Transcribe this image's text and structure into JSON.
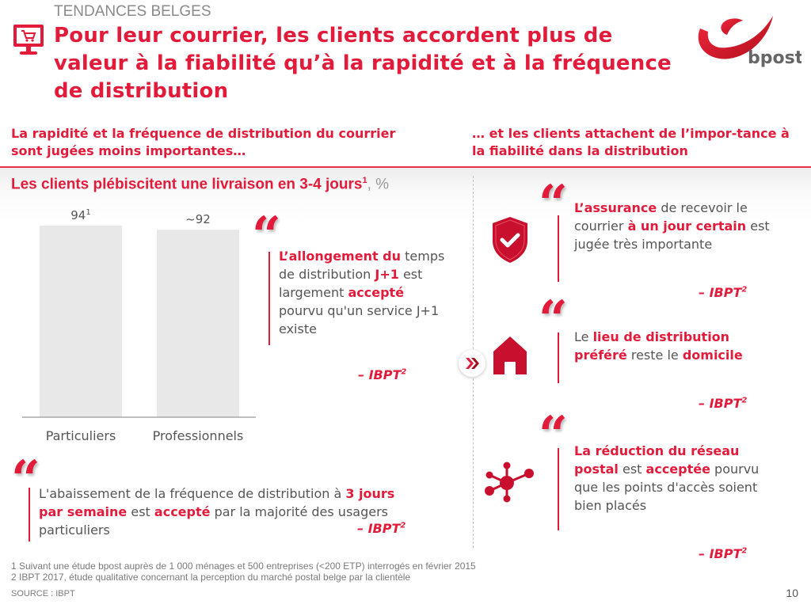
{
  "header": {
    "kicker": "TENDANCES BELGES",
    "title": "Pour leur courrier, les clients accordent plus de valeur à la fiabilité qu’à la rapidité et à la fréquence de distribution",
    "icon": "monitor-cart-icon",
    "logo_text": "bpost"
  },
  "colors": {
    "accent": "#e31b3b",
    "bar": "#e8e8e8",
    "text": "#555555"
  },
  "left": {
    "subtitle": "La rapidité et la fréquence de distribution du courrier sont jugées moins importantes…",
    "quote1": {
      "p1": "L’allongement du",
      "p2": " temps de distribution ",
      "p3": "J+1",
      "p4": " est largement ",
      "p5": "accepté",
      "p6": " pourvu qu'un service J+1 existe",
      "source": "– IBPT",
      "source_sup": "2"
    },
    "quote2": {
      "p1": "L'abaissement de la fréquence de distribution à ",
      "p2": "3 jours par semaine",
      "p3": " est ",
      "p4": "accepté",
      "p5": " par la majorité des usagers particuliers",
      "source": "– IBPT",
      "source_sup": "2"
    }
  },
  "chart_data": {
    "type": "bar",
    "title": "Les clients plébiscitent une livraison en 3-4 jours",
    "title_sup": "1",
    "unit": ", %",
    "categories": [
      "Particuliers",
      "Professionnels"
    ],
    "values": [
      94,
      92
    ],
    "value_labels": [
      "94",
      "~92"
    ],
    "value_label_sups": [
      "1",
      ""
    ],
    "xlabel": "",
    "ylabel": "",
    "ylim": [
      0,
      100
    ],
    "grid": false
  },
  "right": {
    "subtitle": "… et les clients attachent de l’impor-tance à la fiabilité dans la distribution",
    "chevron_icon": "double-chevron-right-icon",
    "quote1": {
      "icon": "shield-check-icon",
      "p1": "L’assurance",
      "p2": " de recevoir le courrier ",
      "p3": "à un jour certain",
      "p4": " est jugée très importante",
      "source": "– IBPT",
      "source_sup": "2"
    },
    "quote2": {
      "icon": "house-icon",
      "p1": "Le ",
      "p2": "lieu de distribution préféré",
      "p3": " reste le ",
      "p4": "domicile",
      "source": "– IBPT",
      "source_sup": "2"
    },
    "quote3": {
      "icon": "network-nodes-icon",
      "p1": "La réduction du réseau postal",
      "p2": " est ",
      "p3": "acceptée",
      "p4": " pourvu que les points d'accès soient bien placés",
      "source": "– IBPT",
      "source_sup": "2"
    }
  },
  "footer": {
    "note1": "1 Suivant une étude bpost auprès de 1 000 ménages et 500 entreprises (<200 ETP) interrogés en février 2015",
    "note2": "2 IBPT 2017, étude qualitative concernant la perception du marché postal belge par la clientèle",
    "source": "SOURCE : IBPT",
    "page": "10"
  }
}
